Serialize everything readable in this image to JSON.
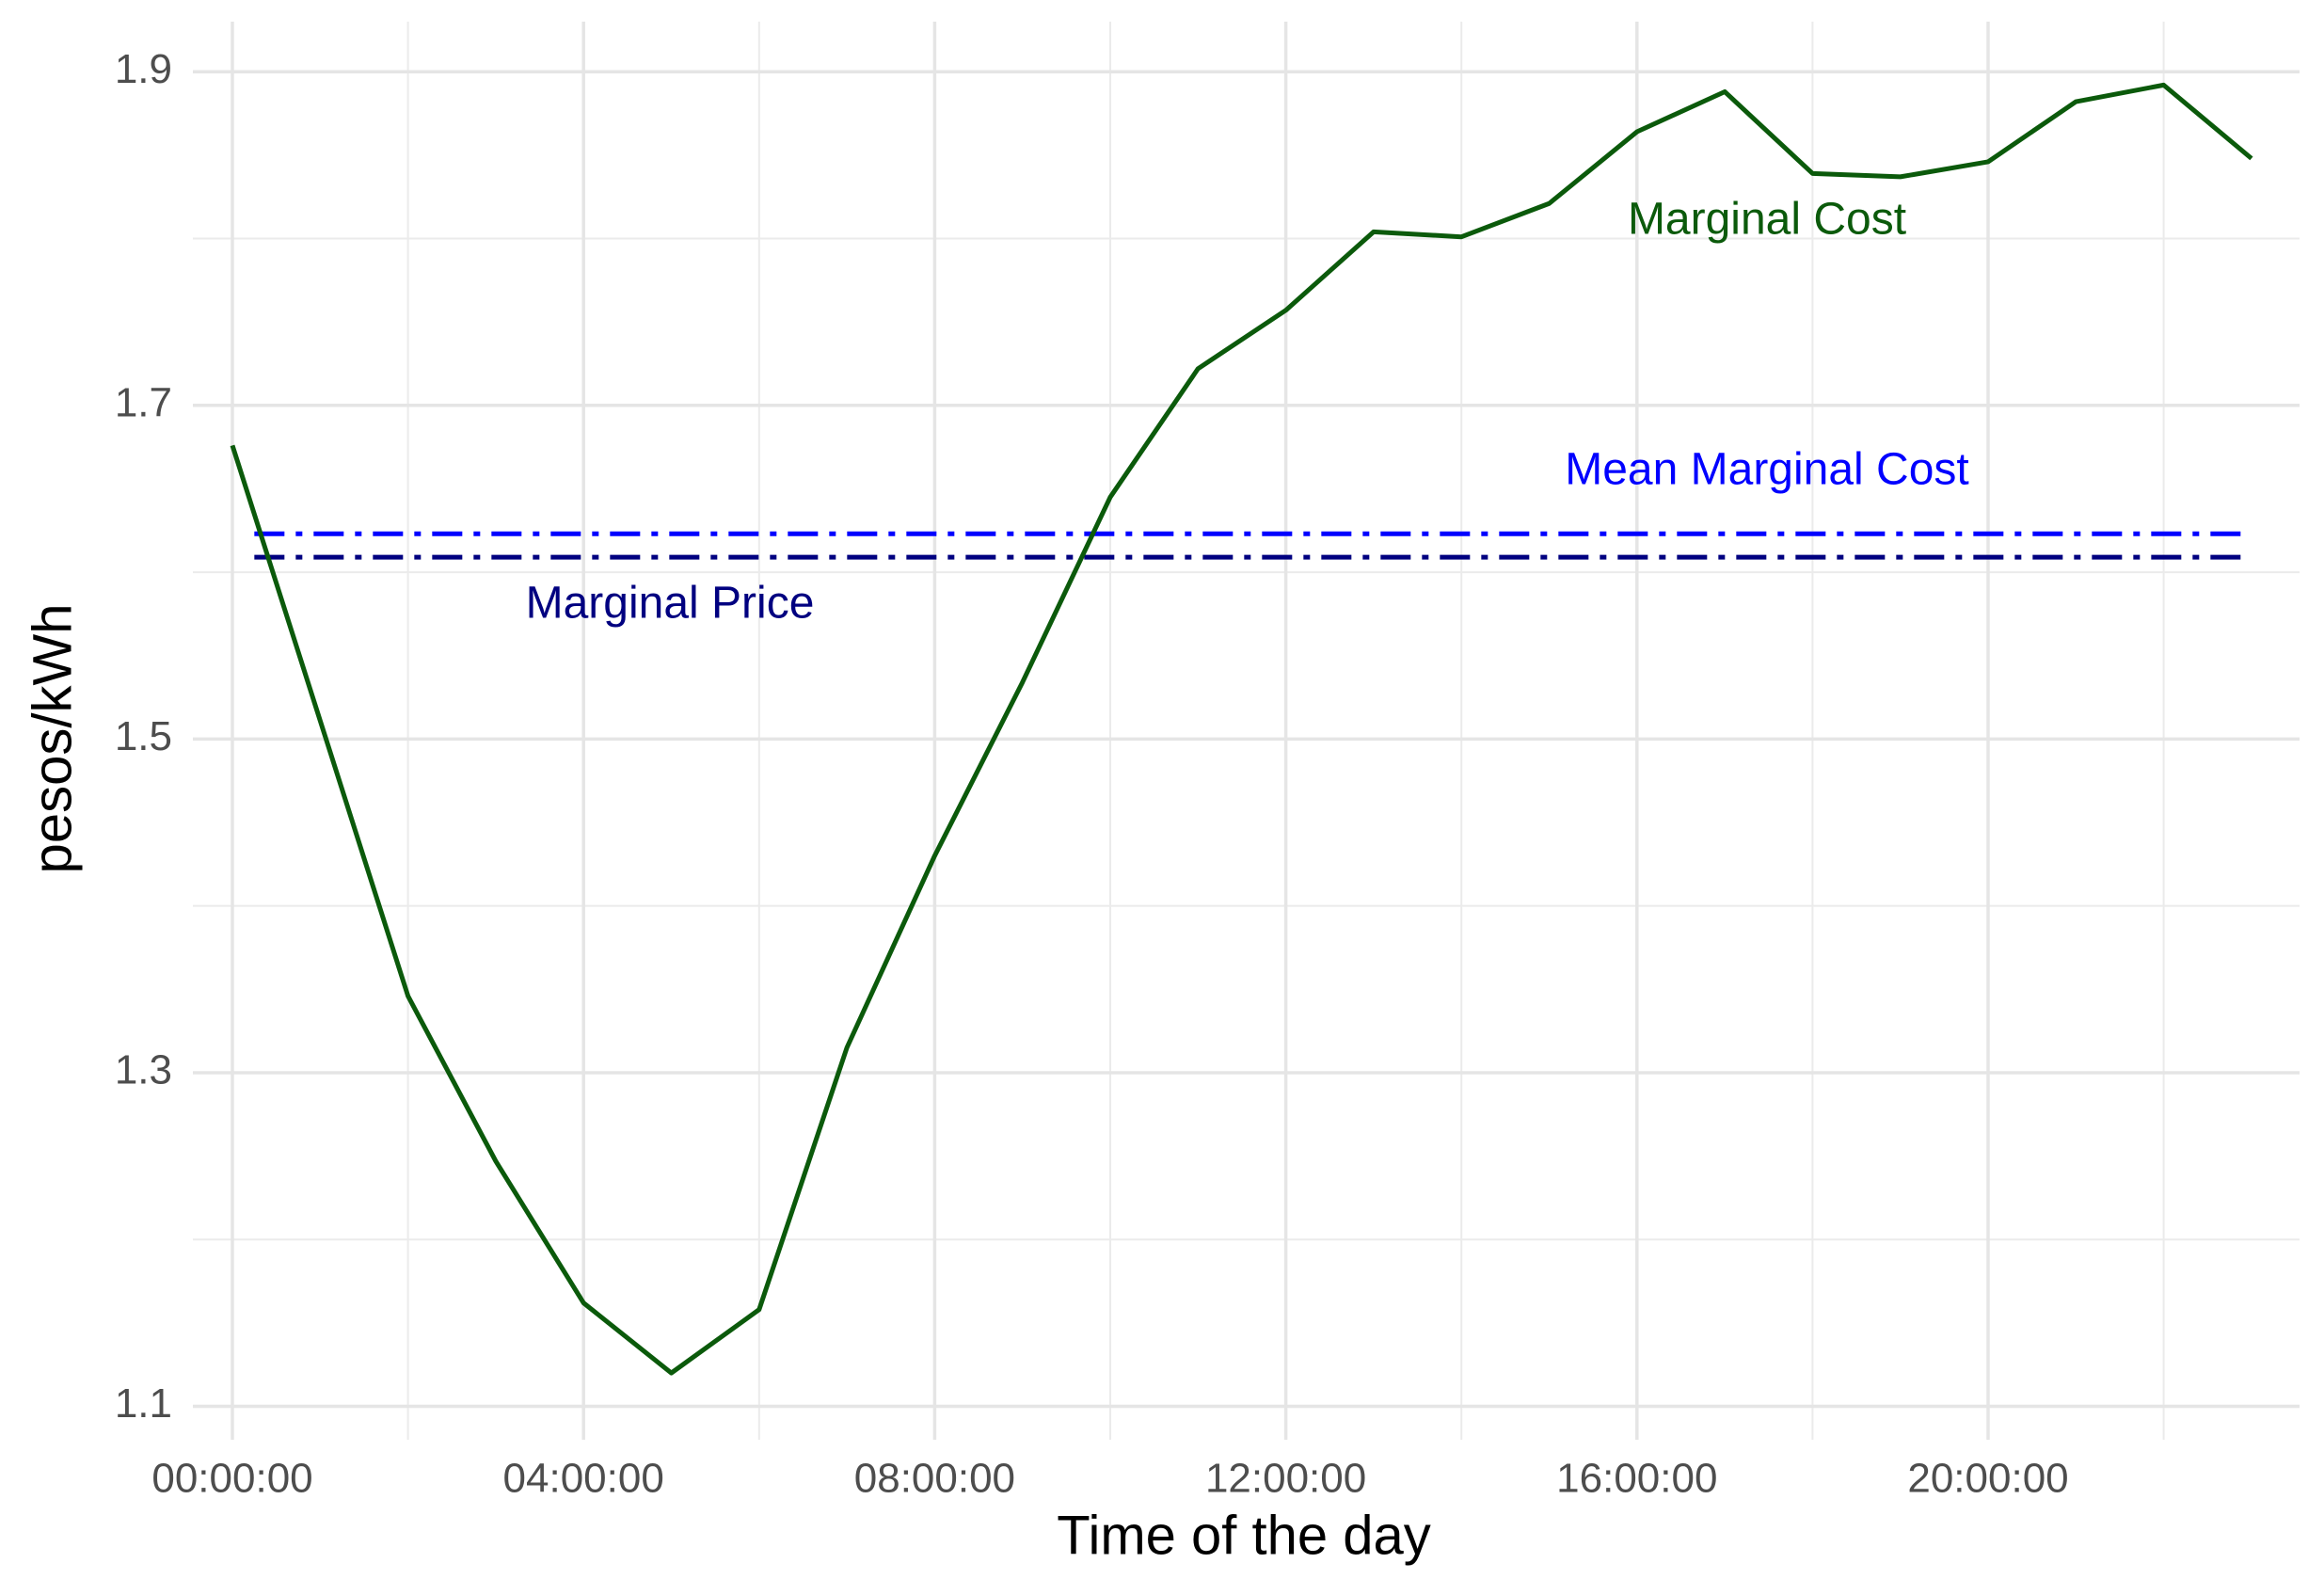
{
  "chart_data": {
    "type": "line",
    "x_label": "Time of the day",
    "y_label": "pesos/kWh",
    "x": [
      "00:00:00",
      "01:00:00",
      "02:00:00",
      "03:00:00",
      "04:00:00",
      "05:00:00",
      "06:00:00",
      "07:00:00",
      "08:00:00",
      "09:00:00",
      "10:00:00",
      "11:00:00",
      "12:00:00",
      "13:00:00",
      "14:00:00",
      "15:00:00",
      "16:00:00",
      "17:00:00",
      "18:00:00",
      "19:00:00",
      "20:00:00",
      "21:00:00",
      "22:00:00",
      "23:00:00"
    ],
    "series": [
      {
        "name": "Marginal Cost",
        "color": "#0b5a0b",
        "values": [
          1.676,
          1.511,
          1.346,
          1.247,
          1.162,
          1.12,
          1.158,
          1.315,
          1.43,
          1.534,
          1.645,
          1.722,
          1.757,
          1.804,
          1.801,
          1.821,
          1.864,
          1.888,
          1.839,
          1.837,
          1.846,
          1.882,
          1.892,
          1.848
        ]
      }
    ],
    "hlines": [
      {
        "name": "Mean Marginal Cost",
        "value": 1.623,
        "color": "#0000ff"
      },
      {
        "name": "Marginal Price",
        "value": 1.609,
        "color": "#000080"
      }
    ],
    "xticks": [
      "00:00:00",
      "04:00:00",
      "08:00:00",
      "12:00:00",
      "16:00:00",
      "20:00:00"
    ],
    "ylim": [
      1.08,
      1.93
    ],
    "yticks": [
      1.1,
      1.3,
      1.5,
      1.7,
      1.9
    ],
    "minor_yticks": [
      1.2,
      1.4,
      1.6,
      1.8
    ],
    "grid": true
  }
}
